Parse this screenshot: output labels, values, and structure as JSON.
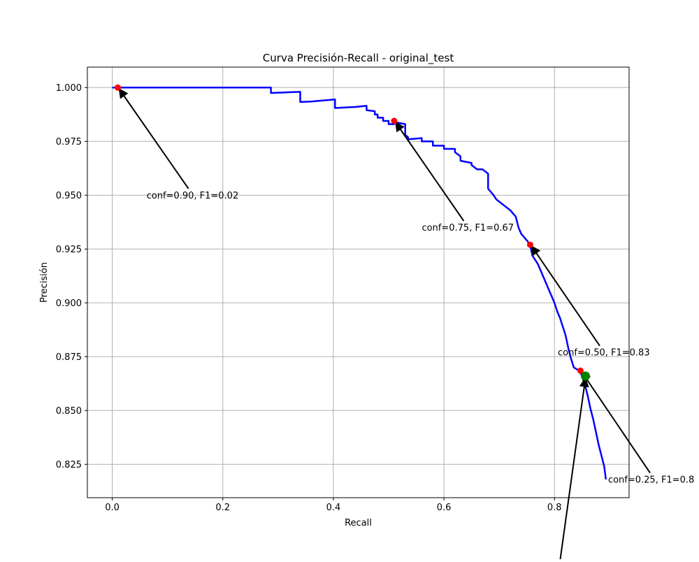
{
  "chart_data": {
    "type": "line",
    "title": "Curva Precisión-Recall - original_test",
    "xlabel": "Recall",
    "ylabel": "Precisión",
    "xlim": [
      -0.045,
      0.935
    ],
    "ylim": [
      0.8095,
      1.0095
    ],
    "grid": true,
    "x_ticks": [
      0.0,
      0.2,
      0.4,
      0.6,
      0.8
    ],
    "x_tick_labels": [
      "0.0",
      "0.2",
      "0.4",
      "0.6",
      "0.8"
    ],
    "y_ticks": [
      0.825,
      0.85,
      0.875,
      0.9,
      0.925,
      0.95,
      0.975,
      1.0
    ],
    "y_tick_labels": [
      "0.825",
      "0.850",
      "0.875",
      "0.900",
      "0.925",
      "0.950",
      "0.975",
      "1.000"
    ],
    "series": [
      {
        "color": "#0000ff",
        "x": [
          0.0,
          0.01,
          0.287,
          0.287,
          0.34,
          0.34,
          0.36,
          0.403,
          0.403,
          0.44,
          0.46,
          0.46,
          0.475,
          0.475,
          0.48,
          0.48,
          0.49,
          0.49,
          0.5,
          0.5,
          0.51,
          0.51,
          0.53,
          0.53,
          0.535,
          0.535,
          0.56,
          0.56,
          0.58,
          0.58,
          0.6,
          0.6,
          0.62,
          0.62,
          0.63,
          0.63,
          0.65,
          0.65,
          0.655,
          0.66,
          0.67,
          0.68,
          0.68,
          0.69,
          0.695,
          0.7,
          0.71,
          0.72,
          0.73,
          0.735,
          0.74,
          0.75,
          0.756,
          0.76,
          0.77,
          0.775,
          0.78,
          0.785,
          0.79,
          0.795,
          0.8,
          0.805,
          0.81,
          0.815,
          0.82,
          0.825,
          0.83,
          0.835,
          0.845,
          0.85,
          0.855,
          0.86,
          0.865,
          0.87,
          0.875,
          0.88,
          0.885,
          0.89,
          0.893
        ],
        "y": [
          1.0,
          1.0,
          1.0,
          0.9975,
          0.998,
          0.9933,
          0.9935,
          0.9945,
          0.9905,
          0.991,
          0.9915,
          0.9895,
          0.989,
          0.9875,
          0.9875,
          0.986,
          0.986,
          0.9845,
          0.9845,
          0.983,
          0.983,
          0.984,
          0.983,
          0.978,
          0.977,
          0.976,
          0.9765,
          0.975,
          0.975,
          0.973,
          0.973,
          0.9715,
          0.9715,
          0.97,
          0.968,
          0.966,
          0.965,
          0.964,
          0.963,
          0.962,
          0.962,
          0.96,
          0.953,
          0.95,
          0.948,
          0.947,
          0.945,
          0.943,
          0.94,
          0.935,
          0.932,
          0.929,
          0.927,
          0.922,
          0.918,
          0.915,
          0.912,
          0.909,
          0.906,
          0.903,
          0.9,
          0.896,
          0.893,
          0.889,
          0.885,
          0.879,
          0.874,
          0.87,
          0.8685,
          0.866,
          0.862,
          0.857,
          0.851,
          0.846,
          0.84,
          0.834,
          0.829,
          0.824,
          0.818
        ]
      }
    ],
    "threshold_points": [
      {
        "x": 0.01,
        "y": 1.0,
        "color": "#ff0000",
        "label": "conf=0.90, F1=0.02",
        "label_x": 0.062,
        "label_y": 0.9485
      },
      {
        "x": 0.51,
        "y": 0.9845,
        "color": "#ff0000",
        "label": "conf=0.75, F1=0.67",
        "label_x": 0.56,
        "label_y": 0.9335
      },
      {
        "x": 0.756,
        "y": 0.927,
        "color": "#ff0000",
        "label": "conf=0.50, F1=0.83",
        "label_x": 0.806,
        "label_y": 0.8755
      },
      {
        "x": 0.847,
        "y": 0.8685,
        "color": "#ff0000",
        "label": "conf=0.25, F1=0.8",
        "label_x": 0.897,
        "label_y": 0.8165
      }
    ],
    "best_point": {
      "x": 0.856,
      "y": 0.866,
      "color": "#008000"
    }
  }
}
